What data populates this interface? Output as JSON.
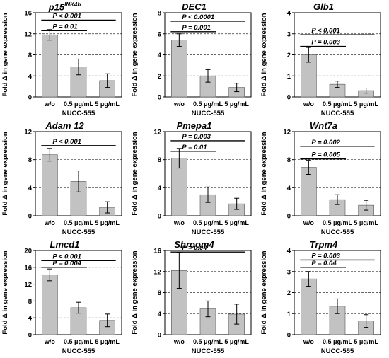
{
  "shared": {
    "ylabel": "Fold Δ in gene expression",
    "xlabel": "NUCC-555",
    "categories": [
      "w/o",
      "0.5 μg/mL",
      "5 μg/mL"
    ]
  },
  "chart_data": [
    {
      "type": "bar",
      "title": "p15",
      "title_sup": "INK4b",
      "categories": [
        "w/o",
        "0.5 μg/mL",
        "5 μg/mL"
      ],
      "values": [
        11.8,
        5.7,
        3.1
      ],
      "errors": [
        1.0,
        1.5,
        1.3
      ],
      "ylim": [
        0,
        16
      ],
      "yticks": [
        0,
        4,
        8,
        12,
        16
      ],
      "xlabel": "NUCC-555",
      "ylabel": "Fold Δ in gene expression",
      "grid": "dashed",
      "annotations": [
        {
          "label": "P < 0.001",
          "from": 0,
          "to": 2,
          "y": 14.6
        },
        {
          "label": "P = 0.01",
          "from": 0,
          "to": 1,
          "y": 12.6
        }
      ]
    },
    {
      "type": "bar",
      "title": "DEC1",
      "title_sup": "",
      "categories": [
        "w/o",
        "0.5 μg/mL",
        "5 μg/mL"
      ],
      "values": [
        5.4,
        2.0,
        0.9
      ],
      "errors": [
        0.6,
        0.6,
        0.4
      ],
      "ylim": [
        0,
        8
      ],
      "yticks": [
        0,
        2,
        4,
        6,
        8
      ],
      "xlabel": "NUCC-555",
      "ylabel": "Fold Δ in gene expression",
      "grid": "dashed",
      "annotations": [
        {
          "label": "P < 0.0001",
          "from": 0,
          "to": 2,
          "y": 7.2
        },
        {
          "label": "P = 0.001",
          "from": 0,
          "to": 1,
          "y": 6.2
        }
      ]
    },
    {
      "type": "bar",
      "title": "Glb1",
      "title_sup": "",
      "categories": [
        "w/o",
        "0.5 μg/mL",
        "5 μg/mL"
      ],
      "values": [
        2.0,
        0.6,
        0.3
      ],
      "errors": [
        0.35,
        0.15,
        0.12
      ],
      "ylim": [
        0,
        4
      ],
      "yticks": [
        0,
        1,
        2,
        3,
        4
      ],
      "xlabel": "NUCC-555",
      "ylabel": "Fold Δ in gene expression",
      "grid": "dashed",
      "annotations": [
        {
          "label": "P < 0.001",
          "from": 0,
          "to": 2,
          "y": 2.95
        },
        {
          "label": "P = 0.003",
          "from": 0,
          "to": 1,
          "y": 2.4
        }
      ]
    },
    {
      "type": "bar",
      "title": "Adam 12",
      "title_sup": "",
      "categories": [
        "w/o",
        "0.5 μg/mL",
        "5 μg/mL"
      ],
      "values": [
        8.7,
        4.9,
        1.2
      ],
      "errors": [
        0.9,
        1.5,
        0.8
      ],
      "ylim": [
        0,
        12
      ],
      "yticks": [
        0,
        4,
        8,
        12
      ],
      "xlabel": "NUCC-555",
      "ylabel": "Fold Δ in gene expression",
      "grid": "dashed",
      "annotations": [
        {
          "label": "P < 0.001",
          "from": 0,
          "to": 2,
          "y": 10.0
        }
      ]
    },
    {
      "type": "bar",
      "title": "Pmepa1",
      "title_sup": "",
      "categories": [
        "w/o",
        "0.5 μg/mL",
        "5 μg/mL"
      ],
      "values": [
        8.2,
        3.0,
        1.7
      ],
      "errors": [
        1.4,
        1.1,
        0.8
      ],
      "ylim": [
        0,
        12
      ],
      "yticks": [
        0,
        4,
        8,
        12
      ],
      "xlabel": "NUCC-555",
      "ylabel": "Fold Δ in gene expression",
      "grid": "dashed",
      "annotations": [
        {
          "label": "P = 0.003",
          "from": 0,
          "to": 2,
          "y": 10.7
        },
        {
          "label": "P = 0.01",
          "from": 0,
          "to": 1,
          "y": 9.2
        }
      ]
    },
    {
      "type": "bar",
      "title": "Wnt7a",
      "title_sup": "",
      "categories": [
        "w/o",
        "0.5 μg/mL",
        "5 μg/mL"
      ],
      "values": [
        6.9,
        2.3,
        1.5
      ],
      "errors": [
        1.0,
        0.7,
        0.7
      ],
      "ylim": [
        0,
        12
      ],
      "yticks": [
        0,
        4,
        8,
        12
      ],
      "xlabel": "NUCC-555",
      "ylabel": "Fold Δ in gene expression",
      "grid": "dashed",
      "annotations": [
        {
          "label": "P = 0.002",
          "from": 0,
          "to": 2,
          "y": 9.9
        },
        {
          "label": "P = 0.005",
          "from": 0,
          "to": 1,
          "y": 8.1
        }
      ]
    },
    {
      "type": "bar",
      "title": "Lmcd1",
      "title_sup": "",
      "categories": [
        "w/o",
        "0.5 μg/mL",
        "5 μg/mL"
      ],
      "values": [
        14.2,
        6.4,
        3.4
      ],
      "errors": [
        1.4,
        1.3,
        1.5
      ],
      "ylim": [
        0,
        20
      ],
      "yticks": [
        0,
        4,
        8,
        12,
        16,
        20
      ],
      "xlabel": "NUCC-555",
      "ylabel": "Fold Δ in gene expression",
      "grid": "dashed",
      "annotations": [
        {
          "label": "P < 0.001",
          "from": 0,
          "to": 2,
          "y": 17.6
        },
        {
          "label": "P = 0.004",
          "from": 0,
          "to": 1,
          "y": 16.0
        }
      ]
    },
    {
      "type": "bar",
      "title": "Shroom4",
      "title_sup": "",
      "categories": [
        "w/o",
        "0.5 μg/mL",
        "5 μg/mL"
      ],
      "values": [
        12.2,
        4.9,
        3.9
      ],
      "errors": [
        3.4,
        1.5,
        1.9
      ],
      "ylim": [
        0,
        16
      ],
      "yticks": [
        0,
        4,
        8,
        12,
        16
      ],
      "xlabel": "NUCC-555",
      "ylabel": "Fold Δ in gene expression",
      "grid": "dashed",
      "annotations": [
        {
          "label": "P = 0.04",
          "from": 0,
          "to": 2,
          "y": 15.7
        }
      ]
    },
    {
      "type": "bar",
      "title": "Trpm4",
      "title_sup": "",
      "categories": [
        "w/o",
        "0.5 μg/mL",
        "5 μg/mL"
      ],
      "values": [
        2.65,
        1.35,
        0.65
      ],
      "errors": [
        0.35,
        0.35,
        0.3
      ],
      "ylim": [
        0,
        4
      ],
      "yticks": [
        0,
        1,
        2,
        3,
        4
      ],
      "xlabel": "NUCC-555",
      "ylabel": "Fold Δ in gene expression",
      "grid": "dashed",
      "annotations": [
        {
          "label": "P = 0.003",
          "from": 0,
          "to": 2,
          "y": 3.55
        },
        {
          "label": "P = 0.04",
          "from": 0,
          "to": 1,
          "y": 3.2
        }
      ]
    }
  ]
}
